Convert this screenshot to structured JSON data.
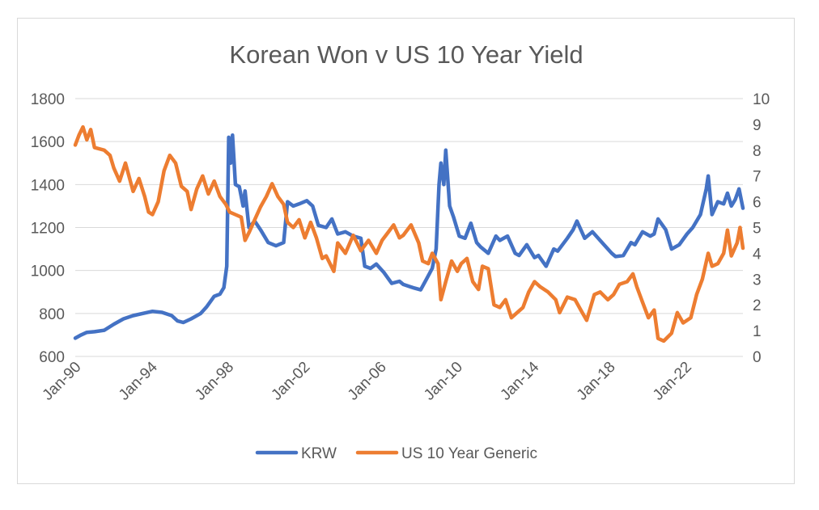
{
  "chart_data": {
    "type": "line",
    "title": "Korean Won v US 10 Year Yield",
    "xlabel": "",
    "ylabel": "",
    "x_ticks": [
      "Jan-90",
      "Jan-94",
      "Jan-98",
      "Jan-02",
      "Jan-06",
      "Jan-10",
      "Jan-14",
      "Jan-18",
      "Jan-22"
    ],
    "x_range": [
      1990.0,
      2024.6
    ],
    "y_left": {
      "min": 600,
      "max": 1800,
      "step": 200,
      "ticks": [
        "600",
        "800",
        "1000",
        "1200",
        "1400",
        "1600",
        "1800"
      ]
    },
    "y_right": {
      "min": 0,
      "max": 10,
      "step": 1,
      "ticks": [
        "0",
        "1",
        "2",
        "3",
        "4",
        "5",
        "6",
        "7",
        "8",
        "9",
        "10"
      ]
    },
    "grid": "horizontal",
    "legend_position": "bottom",
    "series": [
      {
        "name": "KRW",
        "axis": "left",
        "color": "#4472C4",
        "points": [
          [
            1990.0,
            685
          ],
          [
            1990.3,
            700
          ],
          [
            1990.6,
            712
          ],
          [
            1991.0,
            715
          ],
          [
            1991.5,
            722
          ],
          [
            1992.0,
            750
          ],
          [
            1992.5,
            775
          ],
          [
            1993.0,
            790
          ],
          [
            1993.5,
            800
          ],
          [
            1994.0,
            810
          ],
          [
            1994.5,
            805
          ],
          [
            1995.0,
            790
          ],
          [
            1995.3,
            765
          ],
          [
            1995.6,
            758
          ],
          [
            1996.0,
            775
          ],
          [
            1996.5,
            800
          ],
          [
            1996.8,
            830
          ],
          [
            1997.2,
            880
          ],
          [
            1997.5,
            890
          ],
          [
            1997.7,
            920
          ],
          [
            1997.85,
            1020
          ],
          [
            1997.95,
            1620
          ],
          [
            1998.05,
            1500
          ],
          [
            1998.15,
            1630
          ],
          [
            1998.3,
            1400
          ],
          [
            1998.5,
            1390
          ],
          [
            1998.7,
            1300
          ],
          [
            1998.8,
            1370
          ],
          [
            1999.0,
            1200
          ],
          [
            1999.3,
            1230
          ],
          [
            1999.6,
            1190
          ],
          [
            2000.0,
            1130
          ],
          [
            2000.4,
            1115
          ],
          [
            2000.8,
            1130
          ],
          [
            2001.0,
            1320
          ],
          [
            2001.3,
            1300
          ],
          [
            2001.6,
            1310
          ],
          [
            2002.0,
            1325
          ],
          [
            2002.3,
            1300
          ],
          [
            2002.6,
            1210
          ],
          [
            2003.0,
            1200
          ],
          [
            2003.3,
            1240
          ],
          [
            2003.6,
            1170
          ],
          [
            2004.0,
            1180
          ],
          [
            2004.4,
            1160
          ],
          [
            2004.8,
            1150
          ],
          [
            2005.0,
            1020
          ],
          [
            2005.3,
            1010
          ],
          [
            2005.6,
            1030
          ],
          [
            2006.0,
            990
          ],
          [
            2006.4,
            940
          ],
          [
            2006.8,
            950
          ],
          [
            2007.0,
            935
          ],
          [
            2007.5,
            920
          ],
          [
            2007.9,
            910
          ],
          [
            2008.2,
            960
          ],
          [
            2008.5,
            1010
          ],
          [
            2008.7,
            1100
          ],
          [
            2008.85,
            1400
          ],
          [
            2008.95,
            1500
          ],
          [
            2009.1,
            1400
          ],
          [
            2009.2,
            1560
          ],
          [
            2009.4,
            1300
          ],
          [
            2009.6,
            1250
          ],
          [
            2009.9,
            1160
          ],
          [
            2010.2,
            1150
          ],
          [
            2010.5,
            1220
          ],
          [
            2010.8,
            1130
          ],
          [
            2011.0,
            1110
          ],
          [
            2011.4,
            1080
          ],
          [
            2011.8,
            1160
          ],
          [
            2012.0,
            1140
          ],
          [
            2012.4,
            1160
          ],
          [
            2012.8,
            1080
          ],
          [
            2013.0,
            1070
          ],
          [
            2013.4,
            1120
          ],
          [
            2013.8,
            1060
          ],
          [
            2014.0,
            1070
          ],
          [
            2014.4,
            1020
          ],
          [
            2014.8,
            1100
          ],
          [
            2015.0,
            1090
          ],
          [
            2015.5,
            1150
          ],
          [
            2015.8,
            1190
          ],
          [
            2016.0,
            1230
          ],
          [
            2016.4,
            1150
          ],
          [
            2016.8,
            1180
          ],
          [
            2017.0,
            1160
          ],
          [
            2017.4,
            1120
          ],
          [
            2017.8,
            1080
          ],
          [
            2018.0,
            1065
          ],
          [
            2018.4,
            1070
          ],
          [
            2018.8,
            1130
          ],
          [
            2019.0,
            1120
          ],
          [
            2019.4,
            1180
          ],
          [
            2019.8,
            1160
          ],
          [
            2020.0,
            1170
          ],
          [
            2020.2,
            1240
          ],
          [
            2020.6,
            1190
          ],
          [
            2020.9,
            1100
          ],
          [
            2021.3,
            1120
          ],
          [
            2021.7,
            1170
          ],
          [
            2022.0,
            1200
          ],
          [
            2022.4,
            1260
          ],
          [
            2022.7,
            1380
          ],
          [
            2022.8,
            1440
          ],
          [
            2023.0,
            1260
          ],
          [
            2023.3,
            1320
          ],
          [
            2023.6,
            1310
          ],
          [
            2023.8,
            1360
          ],
          [
            2024.0,
            1300
          ],
          [
            2024.2,
            1330
          ],
          [
            2024.4,
            1380
          ],
          [
            2024.6,
            1290
          ]
        ]
      },
      {
        "name": "US 10 Year Generic",
        "axis": "right",
        "color": "#ED7D31",
        "points": [
          [
            1990.0,
            8.2
          ],
          [
            1990.2,
            8.6
          ],
          [
            1990.4,
            8.9
          ],
          [
            1990.6,
            8.4
          ],
          [
            1990.8,
            8.8
          ],
          [
            1991.0,
            8.1
          ],
          [
            1991.5,
            8.0
          ],
          [
            1991.8,
            7.8
          ],
          [
            1992.0,
            7.3
          ],
          [
            1992.3,
            6.8
          ],
          [
            1992.6,
            7.5
          ],
          [
            1993.0,
            6.4
          ],
          [
            1993.3,
            6.9
          ],
          [
            1993.6,
            6.2
          ],
          [
            1993.8,
            5.6
          ],
          [
            1994.0,
            5.5
          ],
          [
            1994.3,
            6.0
          ],
          [
            1994.6,
            7.2
          ],
          [
            1994.9,
            7.8
          ],
          [
            1995.2,
            7.5
          ],
          [
            1995.5,
            6.6
          ],
          [
            1995.8,
            6.4
          ],
          [
            1996.0,
            5.7
          ],
          [
            1996.3,
            6.5
          ],
          [
            1996.6,
            7.0
          ],
          [
            1996.9,
            6.3
          ],
          [
            1997.2,
            6.8
          ],
          [
            1997.5,
            6.2
          ],
          [
            1997.8,
            5.9
          ],
          [
            1998.0,
            5.6
          ],
          [
            1998.3,
            5.5
          ],
          [
            1998.6,
            5.4
          ],
          [
            1998.8,
            4.5
          ],
          [
            1999.0,
            4.8
          ],
          [
            1999.3,
            5.3
          ],
          [
            1999.6,
            5.8
          ],
          [
            1999.9,
            6.2
          ],
          [
            2000.2,
            6.7
          ],
          [
            2000.5,
            6.2
          ],
          [
            2000.8,
            5.9
          ],
          [
            2001.0,
            5.2
          ],
          [
            2001.3,
            5.0
          ],
          [
            2001.6,
            5.3
          ],
          [
            2001.9,
            4.6
          ],
          [
            2002.2,
            5.2
          ],
          [
            2002.5,
            4.6
          ],
          [
            2002.8,
            3.8
          ],
          [
            2003.0,
            3.9
          ],
          [
            2003.4,
            3.3
          ],
          [
            2003.6,
            4.4
          ],
          [
            2004.0,
            4.0
          ],
          [
            2004.4,
            4.7
          ],
          [
            2004.8,
            4.1
          ],
          [
            2005.2,
            4.5
          ],
          [
            2005.6,
            4.0
          ],
          [
            2005.9,
            4.5
          ],
          [
            2006.2,
            4.8
          ],
          [
            2006.5,
            5.1
          ],
          [
            2006.8,
            4.6
          ],
          [
            2007.0,
            4.7
          ],
          [
            2007.4,
            5.1
          ],
          [
            2007.8,
            4.4
          ],
          [
            2008.0,
            3.7
          ],
          [
            2008.3,
            3.6
          ],
          [
            2008.5,
            4.0
          ],
          [
            2008.8,
            3.6
          ],
          [
            2008.95,
            2.2
          ],
          [
            2009.2,
            2.9
          ],
          [
            2009.5,
            3.7
          ],
          [
            2009.8,
            3.3
          ],
          [
            2010.0,
            3.6
          ],
          [
            2010.3,
            3.8
          ],
          [
            2010.6,
            2.9
          ],
          [
            2010.9,
            2.6
          ],
          [
            2011.1,
            3.5
          ],
          [
            2011.4,
            3.4
          ],
          [
            2011.7,
            2.0
          ],
          [
            2012.0,
            1.9
          ],
          [
            2012.3,
            2.2
          ],
          [
            2012.6,
            1.5
          ],
          [
            2012.9,
            1.7
          ],
          [
            2013.2,
            1.9
          ],
          [
            2013.5,
            2.5
          ],
          [
            2013.8,
            2.9
          ],
          [
            2014.1,
            2.7
          ],
          [
            2014.5,
            2.5
          ],
          [
            2014.9,
            2.2
          ],
          [
            2015.1,
            1.7
          ],
          [
            2015.5,
            2.3
          ],
          [
            2015.9,
            2.2
          ],
          [
            2016.2,
            1.8
          ],
          [
            2016.5,
            1.4
          ],
          [
            2016.9,
            2.4
          ],
          [
            2017.2,
            2.5
          ],
          [
            2017.6,
            2.2
          ],
          [
            2017.9,
            2.4
          ],
          [
            2018.2,
            2.8
          ],
          [
            2018.6,
            2.9
          ],
          [
            2018.9,
            3.2
          ],
          [
            2019.1,
            2.7
          ],
          [
            2019.4,
            2.1
          ],
          [
            2019.7,
            1.5
          ],
          [
            2020.0,
            1.8
          ],
          [
            2020.2,
            0.7
          ],
          [
            2020.5,
            0.6
          ],
          [
            2020.9,
            0.9
          ],
          [
            2021.2,
            1.7
          ],
          [
            2021.5,
            1.3
          ],
          [
            2021.9,
            1.5
          ],
          [
            2022.2,
            2.4
          ],
          [
            2022.5,
            3.0
          ],
          [
            2022.8,
            4.0
          ],
          [
            2023.0,
            3.5
          ],
          [
            2023.3,
            3.6
          ],
          [
            2023.6,
            4.0
          ],
          [
            2023.8,
            4.9
          ],
          [
            2024.0,
            3.9
          ],
          [
            2024.3,
            4.4
          ],
          [
            2024.45,
            5.0
          ],
          [
            2024.6,
            4.2
          ]
        ]
      }
    ]
  }
}
